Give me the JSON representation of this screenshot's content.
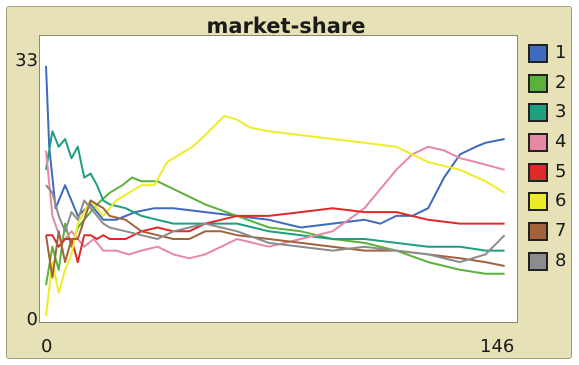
{
  "widget": {
    "title": "market-share"
  },
  "chart_data": {
    "type": "line",
    "title": "market-share",
    "xlabel": "",
    "ylabel": "",
    "xlim": [
      0,
      146
    ],
    "ylim": [
      0,
      33
    ],
    "x_tick_labels": [
      "0",
      "146"
    ],
    "y_tick_labels": [
      "0",
      "33"
    ],
    "grid": false,
    "legend_position": "right",
    "series": [
      {
        "name": "1",
        "color": "#3f6bbf",
        "x": [
          0,
          1,
          3,
          6,
          10,
          14,
          18,
          22,
          28,
          34,
          40,
          50,
          60,
          70,
          80,
          90,
          100,
          105,
          110,
          115,
          120,
          125,
          130,
          135,
          138,
          144
        ],
        "y": [
          32.5,
          22,
          14,
          17,
          13,
          14.5,
          12.5,
          12.5,
          13.5,
          14,
          14,
          13.5,
          13,
          12.5,
          11.5,
          12,
          12.5,
          12,
          13,
          13,
          14,
          18,
          21,
          22,
          22.5,
          23
        ]
      },
      {
        "name": "2",
        "color": "#5ab23a",
        "x": [
          0,
          2,
          4,
          6,
          8,
          10,
          13,
          16,
          20,
          24,
          27,
          30,
          35,
          40,
          45,
          50,
          60,
          70,
          80,
          90,
          100,
          110,
          120,
          130,
          138,
          144
        ],
        "y": [
          4,
          9,
          6,
          12,
          9,
          11.5,
          13,
          14.5,
          16,
          17,
          18,
          17.5,
          17.5,
          16.5,
          15.5,
          14.5,
          13,
          11.5,
          11,
          10,
          9.5,
          8.5,
          7,
          6,
          5.5,
          5.5
        ]
      },
      {
        "name": "3",
        "color": "#1f9e80",
        "x": [
          0,
          2,
          4,
          6,
          8,
          10,
          12,
          14,
          16,
          18,
          20,
          25,
          30,
          35,
          40,
          50,
          60,
          70,
          80,
          90,
          100,
          110,
          120,
          130,
          138,
          144
        ],
        "y": [
          19,
          24,
          22,
          23,
          20.5,
          22,
          18,
          18.5,
          17,
          15,
          14.5,
          14,
          13,
          12.5,
          12,
          12,
          12,
          11,
          10.5,
          10,
          10,
          9.5,
          9,
          9,
          8.5,
          8.5
        ]
      },
      {
        "name": "4",
        "color": "#e58aa4",
        "x": [
          0,
          2,
          5,
          8,
          10,
          12,
          15,
          18,
          22,
          26,
          30,
          35,
          40,
          45,
          50,
          55,
          60,
          65,
          70,
          80,
          90,
          100,
          110,
          115,
          120,
          125,
          130,
          135,
          144
        ],
        "y": [
          21.5,
          13,
          9.5,
          11,
          10,
          9,
          10,
          8.5,
          8.5,
          8,
          8.5,
          9,
          8,
          7.5,
          8,
          9,
          10,
          9.5,
          9,
          10,
          11,
          14,
          19,
          21,
          22,
          21.5,
          20.5,
          20,
          19
        ]
      },
      {
        "name": "5",
        "color": "#e02a2a",
        "x": [
          0,
          2,
          4,
          6,
          8,
          10,
          12,
          14,
          16,
          18,
          20,
          25,
          30,
          35,
          40,
          45,
          50,
          55,
          60,
          70,
          80,
          90,
          100,
          110,
          120,
          130,
          138,
          144
        ],
        "y": [
          10.5,
          10.5,
          9,
          10,
          10,
          7,
          10.5,
          10.5,
          10,
          10.5,
          10,
          10,
          11,
          11.5,
          11,
          11,
          12,
          12.5,
          13,
          13,
          13.5,
          14,
          13.5,
          13.5,
          12.5,
          12,
          12,
          12
        ]
      },
      {
        "name": "6",
        "color": "#eded27",
        "x": [
          0,
          2,
          4,
          6,
          8,
          10,
          14,
          18,
          22,
          26,
          30,
          34,
          38,
          42,
          46,
          50,
          56,
          60,
          64,
          70,
          80,
          90,
          100,
          110,
          120,
          130,
          138,
          144
        ],
        "y": [
          0,
          7,
          3,
          6,
          8,
          12,
          15,
          13,
          15,
          16,
          17,
          17,
          20,
          21,
          22,
          23.5,
          26,
          25.5,
          24.5,
          24,
          23.5,
          23,
          22.5,
          22,
          20,
          19,
          17.5,
          16
        ]
      },
      {
        "name": "7",
        "color": "#a2633c",
        "x": [
          0,
          2,
          4,
          6,
          8,
          10,
          12,
          14,
          16,
          18,
          20,
          25,
          30,
          35,
          40,
          45,
          50,
          55,
          60,
          70,
          80,
          90,
          100,
          110,
          120,
          130,
          138,
          144
        ],
        "y": [
          10.5,
          5,
          11,
          7,
          10,
          10,
          12.5,
          15,
          14.5,
          14,
          13,
          12.5,
          11,
          10.5,
          10,
          10,
          11,
          11,
          10.5,
          10,
          9.5,
          9,
          8.5,
          8.5,
          8,
          7.5,
          7,
          6.5
        ]
      },
      {
        "name": "8",
        "color": "#8c8c8c",
        "x": [
          0,
          2,
          4,
          6,
          8,
          10,
          12,
          14,
          16,
          18,
          20,
          25,
          30,
          35,
          40,
          45,
          50,
          55,
          60,
          70,
          80,
          90,
          100,
          110,
          120,
          130,
          138,
          144
        ],
        "y": [
          17,
          16,
          13,
          11,
          13.5,
          12.5,
          15,
          14,
          13,
          12,
          11.5,
          11,
          10.5,
          10,
          11,
          11.5,
          12,
          11.5,
          11,
          9.5,
          9,
          8.5,
          9,
          8.5,
          8,
          7,
          8,
          10.5
        ]
      }
    ]
  }
}
